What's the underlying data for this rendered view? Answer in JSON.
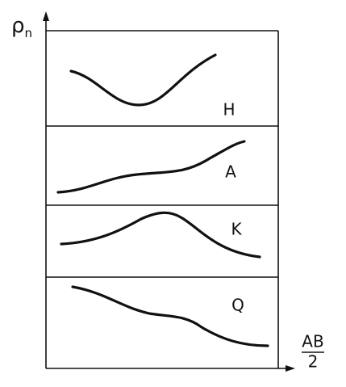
{
  "axes": {
    "y_label": "ρ",
    "y_label_subscript": "n",
    "x_label_numerator": "AB",
    "x_label_denominator": "2"
  },
  "panels": [
    {
      "label": "H"
    },
    {
      "label": "A"
    },
    {
      "label": "K"
    },
    {
      "label": "Q"
    }
  ]
}
